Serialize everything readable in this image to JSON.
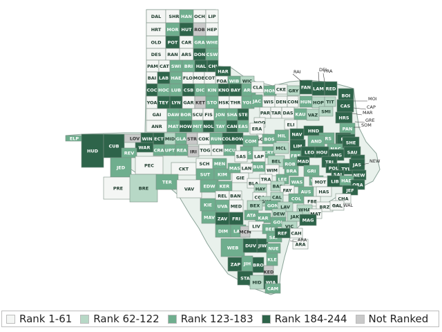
{
  "colors": {
    "rank_1_61": "#f4f6f4",
    "rank_62_122": "#b7d8c6",
    "rank_123_183": "#6fae8e",
    "rank_184_244": "#2e644a",
    "not_ranked": "#c9c9c9",
    "border": "#7a8f84"
  },
  "legend": [
    {
      "label": "Rank 1-61",
      "class": "r1"
    },
    {
      "label": "Rank 62-122",
      "class": "r2"
    },
    {
      "label": "Rank 123-183",
      "class": "r3"
    },
    {
      "label": "Rank 184-244",
      "class": "r4"
    },
    {
      "label": "Not Ranked",
      "class": "nr"
    }
  ],
  "counties": [
    {
      "code": "DAL",
      "cls": "r1"
    },
    {
      "code": "SHR",
      "cls": "r1"
    },
    {
      "code": "HAN",
      "cls": "r3"
    },
    {
      "code": "OCH",
      "cls": "r1"
    },
    {
      "code": "LIP",
      "cls": "r1"
    },
    {
      "code": "HRT",
      "cls": "r1"
    },
    {
      "code": "MOR",
      "cls": "r3"
    },
    {
      "code": "HUT",
      "cls": "r4"
    },
    {
      "code": "ROB",
      "cls": "nr"
    },
    {
      "code": "HEP",
      "cls": "r1"
    },
    {
      "code": "OLD",
      "cls": "r1"
    },
    {
      "code": "POT",
      "cls": "r4"
    },
    {
      "code": "CAR",
      "cls": "r1"
    },
    {
      "code": "GRA",
      "cls": "r3"
    },
    {
      "code": "WHE",
      "cls": "r3"
    },
    {
      "code": "DES",
      "cls": "r1"
    },
    {
      "code": "RAN",
      "cls": "r1"
    },
    {
      "code": "ARS",
      "cls": "r1"
    },
    {
      "code": "DON",
      "cls": "r4"
    },
    {
      "code": "CSW",
      "cls": "r3"
    },
    {
      "code": "PAM",
      "cls": "r1"
    },
    {
      "code": "CAT",
      "cls": "r1"
    },
    {
      "code": "SWI",
      "cls": "r3"
    },
    {
      "code": "BRI",
      "cls": "r3"
    },
    {
      "code": "HAL",
      "cls": "r4"
    },
    {
      "code": "CHI",
      "cls": "r4"
    },
    {
      "code": "HAR",
      "cls": "r4"
    },
    {
      "code": "FOA",
      "cls": "r1"
    },
    {
      "code": "WIB",
      "cls": "r3"
    },
    {
      "code": "WIC",
      "cls": "r2"
    },
    {
      "code": "COC",
      "cls": "r4"
    },
    {
      "code": "HOC",
      "cls": "r3"
    },
    {
      "code": "LUB",
      "cls": "r3"
    },
    {
      "code": "CSB",
      "cls": "r4"
    },
    {
      "code": "DIC",
      "cls": "r3"
    },
    {
      "code": "KIN",
      "cls": "r3"
    },
    {
      "code": "KNO",
      "cls": "r4"
    },
    {
      "code": "BAY",
      "cls": "r4"
    },
    {
      "code": "ARC",
      "cls": "r3"
    },
    {
      "code": "BAI",
      "cls": "r1"
    },
    {
      "code": "LAB",
      "cls": "r4"
    },
    {
      "code": "HAE",
      "cls": "r3"
    },
    {
      "code": "FLO",
      "cls": "r1"
    },
    {
      "code": "MOE",
      "cls": "r1"
    },
    {
      "code": "COT",
      "cls": "r1"
    },
    {
      "code": "YOA",
      "cls": "r1"
    },
    {
      "code": "TEY",
      "cls": "r4"
    },
    {
      "code": "LYN",
      "cls": "r4"
    },
    {
      "code": "GAR",
      "cls": "r1"
    },
    {
      "code": "KET",
      "cls": "nr"
    },
    {
      "code": "STO",
      "cls": "r3"
    },
    {
      "code": "HSK",
      "cls": "r1"
    },
    {
      "code": "THR",
      "cls": "r1"
    },
    {
      "code": "YOU",
      "cls": "r3"
    },
    {
      "code": "GAI",
      "cls": "r1"
    },
    {
      "code": "DAW",
      "cls": "r3"
    },
    {
      "code": "BOR",
      "cls": "r3"
    },
    {
      "code": "SCU",
      "cls": "r1"
    },
    {
      "code": "FIS",
      "cls": "r1"
    },
    {
      "code": "JON",
      "cls": "r3"
    },
    {
      "code": "SHA",
      "cls": "r3"
    },
    {
      "code": "STE",
      "cls": "r4"
    },
    {
      "code": "ANR",
      "cls": "r1"
    },
    {
      "code": "MAT",
      "cls": "r3"
    },
    {
      "code": "HOW",
      "cls": "r4"
    },
    {
      "code": "MIT",
      "cls": "r3"
    },
    {
      "code": "NOL",
      "cls": "r4"
    },
    {
      "code": "TAY",
      "cls": "r3"
    },
    {
      "code": "CAN",
      "cls": "r4"
    },
    {
      "code": "EAS",
      "cls": "r3"
    },
    {
      "code": "ELP",
      "cls": "r3"
    },
    {
      "code": "HUD",
      "cls": "r4"
    },
    {
      "code": "CUB",
      "cls": "r4"
    },
    {
      "code": "LOV",
      "cls": "nr"
    },
    {
      "code": "WIN",
      "cls": "r4"
    },
    {
      "code": "ECT",
      "cls": "r4"
    },
    {
      "code": "MID",
      "cls": "r2"
    },
    {
      "code": "GLA",
      "cls": "r3"
    },
    {
      "code": "STR",
      "cls": "nr"
    },
    {
      "code": "COK",
      "cls": "r1"
    },
    {
      "code": "RUN",
      "cls": "r3"
    },
    {
      "code": "COLBOW",
      "cls": "r4"
    },
    {
      "code": "WAR",
      "cls": "r4"
    },
    {
      "code": "CRA",
      "cls": "r3"
    },
    {
      "code": "UPT",
      "cls": "r3"
    },
    {
      "code": "REA",
      "cls": "r3"
    },
    {
      "code": "IRI",
      "cls": "nr"
    },
    {
      "code": "TOG",
      "cls": "r1"
    },
    {
      "code": "CCH",
      "cls": "r1"
    },
    {
      "code": "MCU",
      "cls": "r3"
    },
    {
      "code": "REV",
      "cls": "r3"
    },
    {
      "code": "JED",
      "cls": "r3"
    },
    {
      "code": "PEC",
      "cls": "r1"
    },
    {
      "code": "CKT",
      "cls": "r1"
    },
    {
      "code": "SCH",
      "cls": "r1"
    },
    {
      "code": "MEN",
      "cls": "r3"
    },
    {
      "code": "SUT",
      "cls": "r3"
    },
    {
      "code": "KIM",
      "cls": "r3"
    },
    {
      "code": "PRE",
      "cls": "r1"
    },
    {
      "code": "BRE",
      "cls": "r2"
    },
    {
      "code": "TER",
      "cls": "r3"
    },
    {
      "code": "VAV",
      "cls": "r1"
    },
    {
      "code": "EDW",
      "cls": "r3"
    },
    {
      "code": "KER",
      "cls": "r3"
    },
    {
      "code": "REL",
      "cls": "r1"
    },
    {
      "code": "BAN",
      "cls": "r1"
    },
    {
      "code": "KIE",
      "cls": "r3"
    },
    {
      "code": "UVA",
      "cls": "r3"
    },
    {
      "code": "MED",
      "cls": "r1"
    },
    {
      "code": "MAV",
      "cls": "r3"
    },
    {
      "code": "ZAV",
      "cls": "r4"
    },
    {
      "code": "FRI",
      "cls": "r4"
    },
    {
      "code": "DIM",
      "cls": "r3"
    },
    {
      "code": "LAS",
      "cls": "r3"
    },
    {
      "code": "WEB",
      "cls": "r3"
    },
    {
      "code": "MCM",
      "cls": "nr"
    },
    {
      "code": "DUV",
      "cls": "r4"
    },
    {
      "code": "JIW",
      "cls": "r4"
    },
    {
      "code": "NUE",
      "cls": "r3"
    },
    {
      "code": "ZAP",
      "cls": "r4"
    },
    {
      "code": "JIH",
      "cls": "r3"
    },
    {
      "code": "BRO",
      "cls": "r4"
    },
    {
      "code": "KLE",
      "cls": "r3"
    },
    {
      "code": "KED",
      "cls": "nr"
    },
    {
      "code": "STA",
      "cls": "r4"
    },
    {
      "code": "HID",
      "cls": "r2"
    },
    {
      "code": "WIA",
      "cls": "r4"
    },
    {
      "code": "CAM",
      "cls": "r3"
    },
    {
      "code": "CLA",
      "cls": "r1"
    },
    {
      "code": "MON",
      "cls": "r3"
    },
    {
      "code": "CKE",
      "cls": "r1"
    },
    {
      "code": "GRY",
      "cls": "r2"
    },
    {
      "code": "FAN",
      "cls": "r4"
    },
    {
      "code": "LAM",
      "cls": "r4"
    },
    {
      "code": "RED",
      "cls": "r4"
    },
    {
      "code": "BOI",
      "cls": "r4"
    },
    {
      "code": "JAC",
      "cls": "r3"
    },
    {
      "code": "WIS",
      "cls": "r1"
    },
    {
      "code": "DEN",
      "cls": "r1"
    },
    {
      "code": "CON",
      "cls": "r1"
    },
    {
      "code": "HUN",
      "cls": "r3"
    },
    {
      "code": "HOP",
      "cls": "r2"
    },
    {
      "code": "TIT",
      "cls": "r2"
    },
    {
      "code": "CAS",
      "cls": "r4"
    },
    {
      "code": "PAR",
      "cls": "r1"
    },
    {
      "code": "TAR",
      "cls": "r1"
    },
    {
      "code": "DAS",
      "cls": "r1"
    },
    {
      "code": "KAU",
      "cls": "r3"
    },
    {
      "code": "VAZ",
      "cls": "r2"
    },
    {
      "code": "SMI",
      "cls": "r2"
    },
    {
      "code": "HRS",
      "cls": "r4"
    },
    {
      "code": "PAN",
      "cls": "r3"
    },
    {
      "code": "HOO",
      "cls": "r1"
    },
    {
      "code": "ELI",
      "cls": "r1"
    },
    {
      "code": "ERA",
      "cls": "r1"
    },
    {
      "code": "NAV",
      "cls": "r4"
    },
    {
      "code": "HND",
      "cls": "r4"
    },
    {
      "code": "FRS",
      "cls": "r3"
    },
    {
      "code": "CHE",
      "cls": "r4"
    },
    {
      "code": "RUS",
      "cls": "r4"
    },
    {
      "code": "SOM",
      "cls": "r1"
    },
    {
      "code": "BOS",
      "cls": "r3"
    },
    {
      "code": "HIL",
      "cls": "r3"
    },
    {
      "code": "LIM",
      "cls": "r4"
    },
    {
      "code": "AND",
      "cls": "r3"
    },
    {
      "code": "NAC",
      "cls": "r3"
    },
    {
      "code": "SHE",
      "cls": "r4"
    },
    {
      "code": "SAU",
      "cls": "r4"
    },
    {
      "code": "COM",
      "cls": "r3"
    },
    {
      "code": "HAM",
      "cls": "r2"
    },
    {
      "code": "CRY",
      "cls": "r3"
    },
    {
      "code": "MCL",
      "cls": "r2"
    },
    {
      "code": "FRE",
      "cls": "r3"
    },
    {
      "code": "LEO",
      "cls": "r4"
    },
    {
      "code": "HOU",
      "cls": "r4"
    },
    {
      "code": "ANG",
      "cls": "r4"
    },
    {
      "code": "SAB",
      "cls": "r4"
    },
    {
      "code": "MIS",
      "cls": "r3"
    },
    {
      "code": "LAP",
      "cls": "r1"
    },
    {
      "code": "BEL",
      "cls": "r2"
    },
    {
      "code": "ROB2",
      "cls": "r3"
    },
    {
      "code": "MAD",
      "cls": "r4"
    },
    {
      "code": "TRI",
      "cls": "r4"
    },
    {
      "code": "POL",
      "cls": "r4"
    },
    {
      "code": "TYL",
      "cls": "r4"
    },
    {
      "code": "JAS",
      "cls": "r4"
    },
    {
      "code": "SAS",
      "cls": "r1"
    },
    {
      "code": "BUR",
      "cls": "r3"
    },
    {
      "code": "WIM",
      "cls": "r1"
    },
    {
      "code": "GRI",
      "cls": "r3"
    },
    {
      "code": "WAL",
      "cls": "r3"
    },
    {
      "code": "SAJ",
      "cls": "r4"
    },
    {
      "code": "NEW",
      "cls": "r4"
    },
    {
      "code": "MAS",
      "cls": "r3"
    },
    {
      "code": "LAN",
      "cls": "r1"
    },
    {
      "code": "TRA",
      "cls": "r1"
    },
    {
      "code": "LEE",
      "cls": "r3"
    },
    {
      "code": "BRA",
      "cls": "r3"
    },
    {
      "code": "WAS",
      "cls": "r3"
    },
    {
      "code": "MOT",
      "cls": "r1"
    },
    {
      "code": "LIB",
      "cls": "r4"
    },
    {
      "code": "HAD",
      "cls": "r3"
    },
    {
      "code": "ORA",
      "cls": "r4"
    },
    {
      "code": "GIE",
      "cls": "r1"
    },
    {
      "code": "BLA",
      "cls": "r1"
    },
    {
      "code": "HAY",
      "cls": "r2"
    },
    {
      "code": "BAS",
      "cls": "r2"
    },
    {
      "code": "FAY",
      "cls": "r1"
    },
    {
      "code": "AUS",
      "cls": "r3"
    },
    {
      "code": "HAS",
      "cls": "r1"
    },
    {
      "code": "JEF",
      "cls": "r4"
    },
    {
      "code": "CHA",
      "cls": "r1"
    },
    {
      "code": "COA",
      "cls": "r1"
    },
    {
      "code": "GUA",
      "cls": "r2"
    },
    {
      "code": "CAL",
      "cls": "r2"
    },
    {
      "code": "COL",
      "cls": "r3"
    },
    {
      "code": "FBE",
      "cls": "r1"
    },
    {
      "code": "BRZ",
      "cls": "r1"
    },
    {
      "code": "GAL",
      "cls": "r1"
    },
    {
      "code": "BEX",
      "cls": "r2"
    },
    {
      "code": "GON",
      "cls": "r3"
    },
    {
      "code": "LAV",
      "cls": "r2"
    },
    {
      "code": "WHA",
      "cls": "r2"
    },
    {
      "code": "MAT2",
      "cls": "r1"
    },
    {
      "code": "ATA",
      "cls": "r3"
    },
    {
      "code": "KAR",
      "cls": "r3"
    },
    {
      "code": "DEW",
      "cls": "r2"
    },
    {
      "code": "JAK",
      "cls": "r2"
    },
    {
      "code": "MAG",
      "cls": "r4"
    },
    {
      "code": "LIV",
      "cls": "r1"
    },
    {
      "code": "BEE",
      "cls": "r3"
    },
    {
      "code": "GOL",
      "cls": "r3"
    },
    {
      "code": "VIC",
      "cls": "r2"
    },
    {
      "code": "CAH",
      "cls": "r1"
    },
    {
      "code": "SAP",
      "cls": "r3"
    },
    {
      "code": "REF",
      "cls": "r4"
    },
    {
      "code": "ARA",
      "cls": "r1"
    }
  ],
  "callouts": [
    {
      "label": "RAI"
    },
    {
      "label": "DEL"
    },
    {
      "label": "FRA"
    },
    {
      "label": "MOI"
    },
    {
      "label": "CAP"
    },
    {
      "label": "MAR"
    },
    {
      "label": "GRE"
    },
    {
      "label": "SOM"
    },
    {
      "label": "NEW"
    },
    {
      "label": "WAL"
    },
    {
      "label": "ARA"
    }
  ]
}
